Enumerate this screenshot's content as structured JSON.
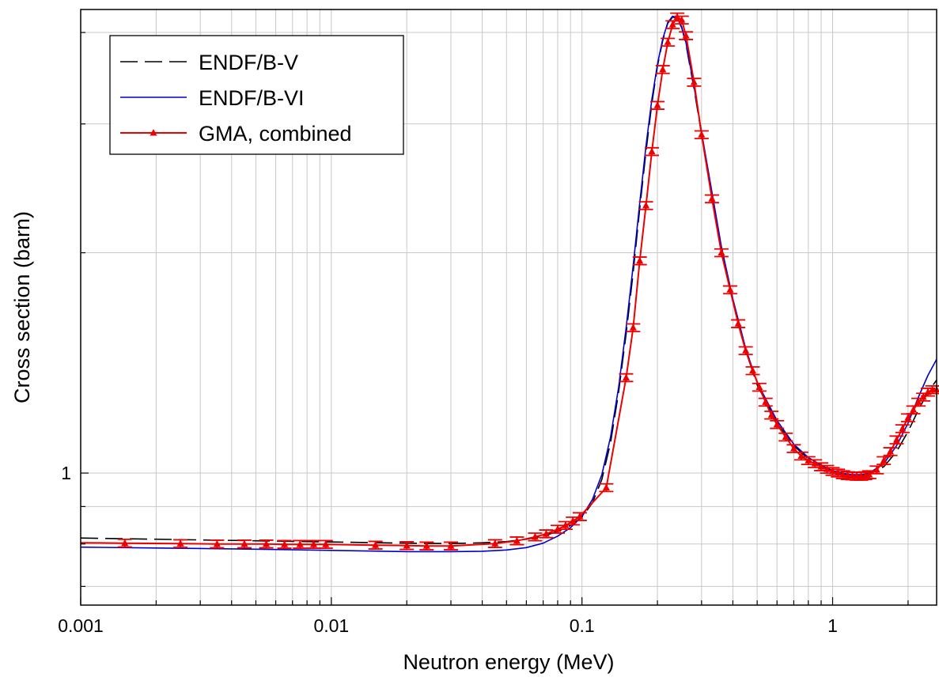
{
  "chart_data": {
    "type": "line",
    "title": "",
    "xlabel": "Neutron energy (MeV)",
    "ylabel": "Cross section (barn)",
    "x_scale": "log",
    "y_scale": "log",
    "xlim": [
      0.001,
      2.6
    ],
    "ylim": [
      0.66,
      4.3
    ],
    "grid": true,
    "legend_position": "top-left",
    "x_tick_labels": [
      {
        "value": 0.001,
        "label": "0.001"
      },
      {
        "value": 0.01,
        "label": "0.01"
      },
      {
        "value": 0.1,
        "label": "0.1"
      },
      {
        "value": 1,
        "label": "1"
      }
    ],
    "y_tick_labels": [
      {
        "value": 1,
        "label": "1"
      }
    ],
    "series": [
      {
        "name": "ENDF/B-V",
        "style": "dashed",
        "color": "#000000",
        "x": [
          0.001,
          0.002,
          0.005,
          0.01,
          0.02,
          0.03,
          0.04,
          0.05,
          0.06,
          0.07,
          0.08,
          0.09,
          0.1,
          0.11,
          0.12,
          0.13,
          0.14,
          0.15,
          0.16,
          0.17,
          0.18,
          0.19,
          0.2,
          0.21,
          0.22,
          0.23,
          0.24,
          0.25,
          0.26,
          0.28,
          0.3,
          0.33,
          0.36,
          0.4,
          0.45,
          0.5,
          0.6,
          0.7,
          0.8,
          0.9,
          1.0,
          1.1,
          1.2,
          1.3,
          1.4,
          1.6,
          1.8,
          2.0,
          2.2,
          2.4,
          2.6
        ],
        "y": [
          0.815,
          0.812,
          0.808,
          0.805,
          0.802,
          0.801,
          0.803,
          0.806,
          0.812,
          0.82,
          0.832,
          0.848,
          0.87,
          0.91,
          0.98,
          1.1,
          1.29,
          1.55,
          1.88,
          2.3,
          2.75,
          3.2,
          3.6,
          3.9,
          4.12,
          4.2,
          4.18,
          4.06,
          3.85,
          3.35,
          2.9,
          2.4,
          2.03,
          1.72,
          1.47,
          1.32,
          1.17,
          1.09,
          1.045,
          1.02,
          1.005,
          0.997,
          0.993,
          0.992,
          0.996,
          1.02,
          1.07,
          1.14,
          1.22,
          1.29,
          1.34
        ]
      },
      {
        "name": "ENDF/B-VI",
        "style": "solid",
        "color": "#0000cc",
        "x": [
          0.001,
          0.002,
          0.005,
          0.01,
          0.02,
          0.03,
          0.04,
          0.05,
          0.06,
          0.07,
          0.08,
          0.09,
          0.1,
          0.11,
          0.12,
          0.13,
          0.14,
          0.15,
          0.16,
          0.17,
          0.18,
          0.19,
          0.2,
          0.21,
          0.22,
          0.23,
          0.24,
          0.25,
          0.26,
          0.28,
          0.3,
          0.33,
          0.36,
          0.4,
          0.45,
          0.5,
          0.6,
          0.7,
          0.8,
          0.9,
          1.0,
          1.1,
          1.2,
          1.3,
          1.4,
          1.6,
          1.8,
          2.0,
          2.2,
          2.4,
          2.6
        ],
        "y": [
          0.792,
          0.79,
          0.787,
          0.784,
          0.781,
          0.781,
          0.782,
          0.785,
          0.791,
          0.802,
          0.82,
          0.842,
          0.872,
          0.92,
          0.995,
          1.12,
          1.31,
          1.58,
          1.92,
          2.34,
          2.8,
          3.24,
          3.62,
          3.92,
          4.13,
          4.21,
          4.19,
          4.07,
          3.87,
          3.37,
          2.92,
          2.42,
          2.04,
          1.73,
          1.48,
          1.33,
          1.18,
          1.095,
          1.05,
          1.025,
          1.008,
          0.999,
          0.995,
          0.995,
          1.0,
          1.03,
          1.09,
          1.17,
          1.27,
          1.36,
          1.43
        ]
      },
      {
        "name": "GMA, combined",
        "style": "solid",
        "color": "#ee0000",
        "marker": "triangle",
        "x": [
          0.001,
          0.0015,
          0.0025,
          0.0035,
          0.0045,
          0.0055,
          0.0065,
          0.0075,
          0.0085,
          0.0095,
          0.015,
          0.02,
          0.024,
          0.03,
          0.045,
          0.055,
          0.065,
          0.072,
          0.08,
          0.086,
          0.092,
          0.098,
          0.125,
          0.15,
          0.16,
          0.17,
          0.18,
          0.19,
          0.2,
          0.21,
          0.22,
          0.23,
          0.24,
          0.25,
          0.26,
          0.28,
          0.3,
          0.33,
          0.36,
          0.39,
          0.42,
          0.45,
          0.48,
          0.51,
          0.54,
          0.57,
          0.6,
          0.65,
          0.7,
          0.75,
          0.8,
          0.85,
          0.9,
          0.95,
          1.0,
          1.05,
          1.1,
          1.15,
          1.2,
          1.25,
          1.3,
          1.35,
          1.4,
          1.5,
          1.6,
          1.7,
          1.8,
          1.9,
          2.0,
          2.1,
          2.2,
          2.3,
          2.4,
          2.5,
          2.6
        ],
        "y": [
          0.803,
          0.802,
          0.801,
          0.8,
          0.8,
          0.8,
          0.799,
          0.799,
          0.799,
          0.799,
          0.797,
          0.796,
          0.795,
          0.795,
          0.801,
          0.808,
          0.818,
          0.826,
          0.838,
          0.848,
          0.86,
          0.872,
          0.955,
          1.35,
          1.58,
          1.95,
          2.32,
          2.75,
          3.18,
          3.56,
          3.88,
          4.1,
          4.2,
          4.16,
          3.96,
          3.42,
          2.9,
          2.37,
          2.0,
          1.78,
          1.6,
          1.47,
          1.38,
          1.31,
          1.25,
          1.2,
          1.165,
          1.12,
          1.08,
          1.055,
          1.04,
          1.03,
          1.02,
          1.012,
          1.005,
          1.0,
          0.995,
          0.992,
          0.991,
          0.99,
          0.99,
          0.992,
          0.995,
          1.01,
          1.04,
          1.07,
          1.11,
          1.15,
          1.19,
          1.22,
          1.25,
          1.27,
          1.29,
          1.3,
          1.3
        ],
        "error": 0.012
      }
    ]
  }
}
